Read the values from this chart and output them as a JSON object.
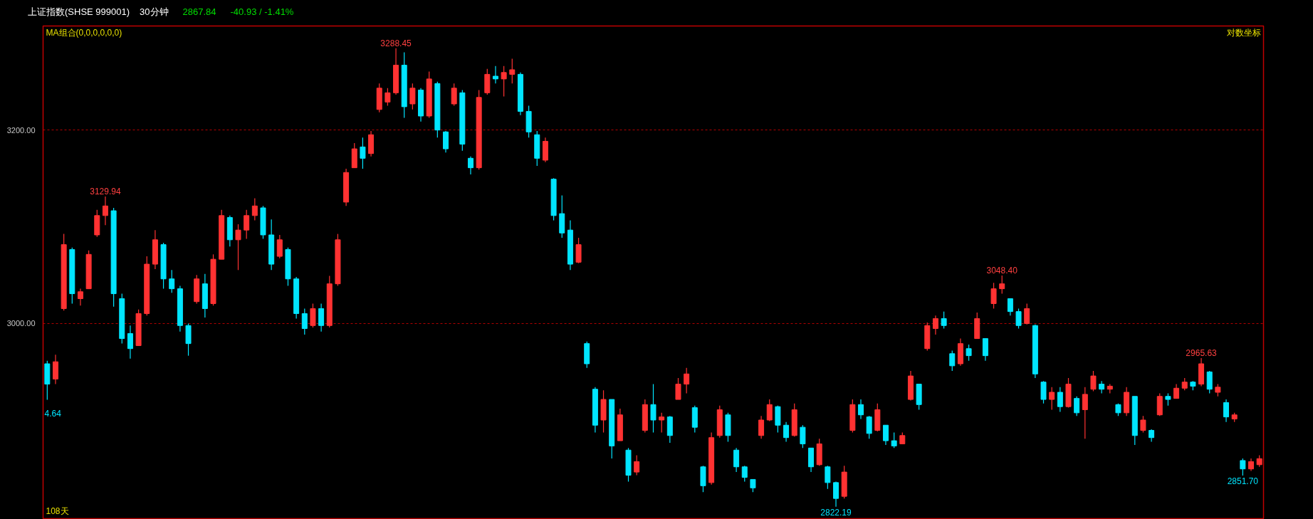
{
  "chart_data": {
    "type": "candlestick",
    "title": "上证指数(SHSE 999001)",
    "subtitle": "30分钟",
    "annotations": [
      "2867.84",
      "-40.93 / -1.41%",
      "MA组合(0,0,0,0,0,0)",
      "对数坐标",
      "108天",
      {
        "text": "3288.45",
        "y": 3288.45
      },
      {
        "text": "3129.94",
        "y": 3129.94
      },
      {
        "text": "3048.40",
        "y": 3048.4
      },
      {
        "text": "2965.63",
        "y": 2965.63
      },
      {
        "text": "2822.19",
        "y": 2822.19
      },
      {
        "text": "2851.70",
        "y": 2851.7
      },
      "4.64"
    ],
    "categories": [
      null,
      null,
      null,
      null,
      null,
      null,
      null,
      null,
      null,
      null,
      null,
      null,
      null,
      null,
      null,
      null,
      null,
      null,
      null,
      null,
      null,
      null,
      null,
      null,
      null,
      null,
      null,
      null,
      null,
      null,
      null,
      null,
      null,
      null,
      null,
      null,
      null,
      null,
      null,
      null,
      null,
      null,
      null,
      null,
      null,
      null,
      null,
      null,
      null,
      null,
      null,
      null,
      null,
      null,
      null,
      null,
      null,
      null,
      null,
      null,
      null,
      null,
      null,
      null,
      null,
      null,
      null,
      null,
      null,
      null,
      null,
      null,
      null,
      null,
      null,
      null,
      null,
      null,
      null,
      null,
      null,
      null,
      null,
      null,
      null,
      null,
      null,
      null,
      null,
      null,
      null,
      null,
      null,
      null,
      null,
      null,
      null,
      null,
      null,
      null,
      null,
      null,
      null,
      null,
      null,
      null,
      null,
      null,
      null,
      null,
      null,
      null,
      null,
      null,
      null,
      null,
      null,
      null,
      null,
      null,
      null,
      null,
      null,
      null,
      null,
      null,
      null,
      null,
      null,
      null,
      null,
      null,
      null,
      null,
      null,
      null,
      null,
      null,
      null,
      null,
      null,
      null,
      null,
      null,
      null,
      null,
      null
    ],
    "ohlc": [
      [
        2960,
        2963,
        2924.64,
        2940
      ],
      [
        2945,
        2969,
        2940,
        2962
      ],
      [
        3015,
        3091,
        3013,
        3080
      ],
      [
        3075,
        3077,
        3020,
        3030
      ],
      [
        3025,
        3035,
        3018,
        3032
      ],
      [
        3035,
        3074,
        3035,
        3070
      ],
      [
        3090,
        3116,
        3088,
        3110
      ],
      [
        3110,
        3129.94,
        3100,
        3120
      ],
      [
        3115,
        3118,
        3017,
        3030
      ],
      [
        3025,
        3030,
        2980,
        2985
      ],
      [
        2990,
        2998,
        2965,
        2975
      ],
      [
        2978,
        3014,
        2978,
        3010
      ],
      [
        3010,
        3068,
        3008,
        3060
      ],
      [
        3060,
        3095,
        3055,
        3085
      ],
      [
        3080,
        3082,
        3035,
        3045
      ],
      [
        3045,
        3054,
        3031,
        3035
      ],
      [
        3035,
        3038,
        2992,
        2998
      ],
      [
        2998,
        3000,
        2968,
        2980
      ],
      [
        3022,
        3049,
        3020,
        3045
      ],
      [
        3040,
        3050,
        3006,
        3015
      ],
      [
        3020,
        3070,
        3018,
        3065
      ],
      [
        3065,
        3116,
        3065,
        3110
      ],
      [
        3108,
        3110,
        3078,
        3085
      ],
      [
        3085,
        3101,
        3054,
        3095
      ],
      [
        3095,
        3116,
        3086,
        3110
      ],
      [
        3110,
        3128,
        3105,
        3120
      ],
      [
        3118,
        3120,
        3086,
        3090
      ],
      [
        3090,
        3106,
        3054,
        3060
      ],
      [
        3068,
        3090,
        3066,
        3085
      ],
      [
        3075,
        3077,
        3038,
        3045
      ],
      [
        3045,
        3047,
        3005,
        3010
      ],
      [
        3010,
        3015,
        2989,
        2995
      ],
      [
        2998,
        3020,
        2996,
        3015
      ],
      [
        3015,
        3020,
        2992,
        2998
      ],
      [
        2998,
        3048,
        2996,
        3040
      ],
      [
        3040,
        3091,
        3038,
        3085
      ],
      [
        3124,
        3159,
        3120,
        3155
      ],
      [
        3160,
        3186,
        3160,
        3180
      ],
      [
        3182,
        3192,
        3159,
        3170
      ],
      [
        3175,
        3199,
        3172,
        3195
      ],
      [
        3222,
        3250,
        3219,
        3245
      ],
      [
        3230,
        3245,
        3226,
        3240
      ],
      [
        3240,
        3288.45,
        3238,
        3270
      ],
      [
        3270,
        3284,
        3213,
        3225
      ],
      [
        3228,
        3250,
        3222,
        3245
      ],
      [
        3243,
        3245,
        3209,
        3215
      ],
      [
        3215,
        3263,
        3213,
        3255
      ],
      [
        3250,
        3252,
        3192,
        3200
      ],
      [
        3198,
        3199,
        3176,
        3180
      ],
      [
        3228,
        3250,
        3226,
        3245
      ],
      [
        3240,
        3243,
        3178,
        3185
      ],
      [
        3170,
        3172,
        3153,
        3160
      ],
      [
        3160,
        3243,
        3158,
        3235
      ],
      [
        3240,
        3266,
        3238,
        3260
      ],
      [
        3258,
        3269,
        3250,
        3255
      ],
      [
        3255,
        3269,
        3236,
        3262
      ],
      [
        3260,
        3277,
        3250,
        3265
      ],
      [
        3260,
        3262,
        3216,
        3220
      ],
      [
        3220,
        3226,
        3192,
        3198
      ],
      [
        3195,
        3199,
        3162,
        3170
      ],
      [
        3168,
        3192,
        3166,
        3188
      ],
      [
        3148,
        3149,
        3105,
        3110
      ],
      [
        3112,
        3131,
        3087,
        3092
      ],
      [
        3095,
        3105,
        3054,
        3060
      ],
      [
        3062,
        3087,
        3061,
        3080
      ],
      [
        2980,
        2982,
        2956,
        2960
      ],
      [
        2935,
        2937,
        2893,
        2900
      ],
      [
        2905,
        2934,
        2893,
        2925
      ],
      [
        2925,
        2925,
        2868,
        2880
      ],
      [
        2885,
        2916,
        2885,
        2910
      ],
      [
        2876,
        2878,
        2846,
        2852
      ],
      [
        2855,
        2871,
        2852,
        2865
      ],
      [
        2895,
        2925,
        2893,
        2920
      ],
      [
        2920,
        2940,
        2893,
        2905
      ],
      [
        2905,
        2912,
        2893,
        2908
      ],
      [
        2908,
        2909,
        2883,
        2890
      ],
      [
        2925,
        2946,
        2925,
        2940
      ],
      [
        2940,
        2956,
        2931,
        2950
      ],
      [
        2917,
        2919,
        2893,
        2898
      ],
      [
        2860,
        2861,
        2836,
        2842
      ],
      [
        2845,
        2893,
        2843,
        2888
      ],
      [
        2890,
        2919,
        2888,
        2915
      ],
      [
        2910,
        2912,
        2884,
        2890
      ],
      [
        2876,
        2878,
        2855,
        2860
      ],
      [
        2860,
        2861,
        2846,
        2850
      ],
      [
        2848,
        2848,
        2836,
        2840
      ],
      [
        2890,
        2909,
        2887,
        2905
      ],
      [
        2905,
        2925,
        2904,
        2920
      ],
      [
        2918,
        2919,
        2893,
        2900
      ],
      [
        2900,
        2903,
        2884,
        2888
      ],
      [
        2890,
        2921,
        2889,
        2915
      ],
      [
        2898,
        2900,
        2878,
        2882
      ],
      [
        2878,
        2878,
        2855,
        2860
      ],
      [
        2862,
        2887,
        2861,
        2882
      ],
      [
        2860,
        2861,
        2839,
        2845
      ],
      [
        2845,
        2846,
        2822.19,
        2830
      ],
      [
        2832,
        2861,
        2830,
        2855
      ],
      [
        2895,
        2925,
        2893,
        2920
      ],
      [
        2920,
        2925,
        2906,
        2910
      ],
      [
        2908,
        2909,
        2887,
        2892
      ],
      [
        2895,
        2921,
        2894,
        2915
      ],
      [
        2900,
        2900,
        2881,
        2885
      ],
      [
        2885,
        2893,
        2878,
        2880
      ],
      [
        2882,
        2893,
        2882,
        2890
      ],
      [
        2925,
        2953,
        2924,
        2948
      ],
      [
        2940,
        2940,
        2915,
        2920
      ],
      [
        2975,
        3001,
        2973,
        2998
      ],
      [
        2995,
        3008,
        2989,
        3005
      ],
      [
        3005,
        3012,
        2995,
        2998
      ],
      [
        2970,
        2973,
        2953,
        2958
      ],
      [
        2960,
        2985,
        2958,
        2980
      ],
      [
        2975,
        2979,
        2963,
        2968
      ],
      [
        2985,
        3011,
        2985,
        3005
      ],
      [
        2985,
        2985,
        2963,
        2968
      ],
      [
        3020,
        3041,
        3015,
        3035
      ],
      [
        3035,
        3048.4,
        3030,
        3040
      ],
      [
        3025,
        3025,
        3008,
        3012
      ],
      [
        3012,
        3015,
        2995,
        2998
      ],
      [
        3000,
        3020,
        2999,
        3015
      ],
      [
        2998,
        2999,
        2946,
        2950
      ],
      [
        2942,
        2943,
        2921,
        2925
      ],
      [
        2925,
        2937,
        2915,
        2932
      ],
      [
        2932,
        2937,
        2913,
        2918
      ],
      [
        2918,
        2946,
        2917,
        2940
      ],
      [
        2926,
        2928,
        2909,
        2912
      ],
      [
        2915,
        2937,
        2887,
        2930
      ],
      [
        2935,
        2953,
        2933,
        2948
      ],
      [
        2940,
        2943,
        2931,
        2935
      ],
      [
        2935,
        2940,
        2931,
        2938
      ],
      [
        2920,
        2921,
        2909,
        2912
      ],
      [
        2912,
        2937,
        2909,
        2932
      ],
      [
        2928,
        2928,
        2881,
        2890
      ],
      [
        2895,
        2909,
        2893,
        2905
      ],
      [
        2895,
        2896,
        2884,
        2888
      ],
      [
        2910,
        2931,
        2909,
        2928
      ],
      [
        2928,
        2931,
        2919,
        2925
      ],
      [
        2926,
        2940,
        2926,
        2936
      ],
      [
        2936,
        2946,
        2934,
        2942
      ],
      [
        2942,
        2943,
        2934,
        2938
      ],
      [
        2940,
        2965.63,
        2938,
        2960
      ],
      [
        2952,
        2953,
        2931,
        2935
      ],
      [
        2932,
        2940,
        2928,
        2937
      ],
      [
        2922,
        2925,
        2903,
        2908
      ],
      [
        2906,
        2912,
        2903,
        2910
      ],
      [
        2866,
        2868,
        2851.7,
        2858
      ],
      [
        2858,
        2868,
        2856,
        2865
      ],
      [
        2862,
        2871,
        2860,
        2867.84
      ]
    ],
    "colors": [
      "#00e5ff",
      "#ff3232",
      "#ff3232",
      "#00e5ff",
      "#ff3232",
      "#ff3232",
      "#ff3232",
      "#ff3232",
      "#00e5ff",
      "#00e5ff",
      "#00e5ff",
      "#ff3232",
      "#ff3232",
      "#ff3232",
      "#00e5ff",
      "#00e5ff",
      "#00e5ff",
      "#00e5ff",
      "#ff3232",
      "#00e5ff",
      "#ff3232",
      "#ff3232",
      "#00e5ff",
      "#ff3232",
      "#ff3232",
      "#ff3232",
      "#00e5ff",
      "#00e5ff",
      "#ff3232",
      "#00e5ff",
      "#00e5ff",
      "#00e5ff",
      "#ff3232",
      "#00e5ff",
      "#ff3232",
      "#ff3232",
      "#ff3232",
      "#ff3232",
      "#00e5ff",
      "#ff3232",
      "#ff3232",
      "#ff3232",
      "#ff3232",
      "#00e5ff",
      "#ff3232",
      "#00e5ff",
      "#ff3232",
      "#00e5ff",
      "#00e5ff",
      "#ff3232",
      "#00e5ff",
      "#00e5ff",
      "#ff3232",
      "#ff3232",
      "#00e5ff",
      "#ff3232",
      "#ff3232",
      "#00e5ff",
      "#00e5ff",
      "#00e5ff",
      "#ff3232",
      "#00e5ff",
      "#00e5ff",
      "#00e5ff",
      "#ff3232",
      "#00e5ff",
      "#00e5ff",
      "#ff3232",
      "#00e5ff",
      "#ff3232",
      "#00e5ff",
      "#ff3232",
      "#ff3232",
      "#00e5ff",
      "#ff3232",
      "#00e5ff",
      "#ff3232",
      "#ff3232",
      "#00e5ff",
      "#00e5ff",
      "#ff3232",
      "#ff3232",
      "#00e5ff",
      "#00e5ff",
      "#00e5ff",
      "#00e5ff",
      "#ff3232",
      "#ff3232",
      "#00e5ff",
      "#00e5ff",
      "#ff3232",
      "#00e5ff",
      "#00e5ff",
      "#ff3232",
      "#00e5ff",
      "#00e5ff",
      "#ff3232",
      "#ff3232",
      "#00e5ff",
      "#00e5ff",
      "#ff3232",
      "#00e5ff",
      "#00e5ff",
      "#ff3232",
      "#ff3232",
      "#00e5ff",
      "#ff3232",
      "#ff3232",
      "#00e5ff",
      "#00e5ff",
      "#ff3232",
      "#00e5ff",
      "#ff3232",
      "#00e5ff",
      "#ff3232",
      "#ff3232",
      "#00e5ff",
      "#00e5ff",
      "#ff3232",
      "#00e5ff",
      "#00e5ff",
      "#ff3232",
      "#00e5ff",
      "#ff3232",
      "#00e5ff",
      "#ff3232",
      "#ff3232",
      "#00e5ff",
      "#ff3232",
      "#00e5ff",
      "#ff3232",
      "#00e5ff",
      "#ff3232",
      "#00e5ff",
      "#ff3232",
      "#00e5ff",
      "#ff3232",
      "#ff3232",
      "#00e5ff",
      "#ff3232",
      "#00e5ff",
      "#ff3232",
      "#00e5ff",
      "#ff3232",
      "#00e5ff",
      "#ff3232",
      "#ff3232"
    ],
    "ylim": [
      2811,
      3313
    ],
    "yticks": [
      {
        "value": 3000,
        "label": "3000.00"
      },
      {
        "value": 3200,
        "label": "3200.00"
      }
    ],
    "log": true,
    "grid": "y",
    "tick_labels": "y"
  }
}
